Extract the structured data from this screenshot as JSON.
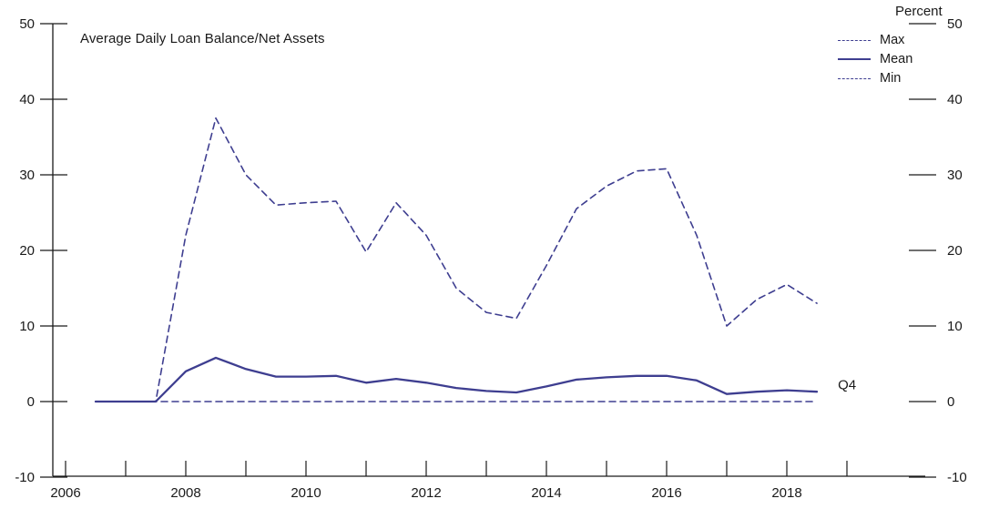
{
  "header": {
    "title": "Average Daily Loan Balance/Net Assets",
    "percent_label": "Percent"
  },
  "legend": [
    {
      "label": "Max",
      "style": "dashed"
    },
    {
      "label": "Mean",
      "style": "solid"
    },
    {
      "label": "Min",
      "style": "dashed"
    }
  ],
  "colors": {
    "line": "#3e3e90",
    "axis": "#1a1a1a",
    "text": "#1a1a1a"
  },
  "chart_data": {
    "type": "line",
    "title": "Average Daily Loan Balance/Net Assets",
    "unit_label": "Percent",
    "ylim": [
      -10,
      50
    ],
    "yticks": [
      -10,
      0,
      10,
      20,
      30,
      40,
      50
    ],
    "xlim": [
      2005.8,
      2020.3
    ],
    "xticks_all": [
      2006,
      2007,
      2008,
      2009,
      2010,
      2011,
      2012,
      2013,
      2014,
      2015,
      2016,
      2017,
      2018,
      2019
    ],
    "xticks_labeled": [
      2006,
      2008,
      2010,
      2012,
      2014,
      2016,
      2018
    ],
    "grid": false,
    "legend_position": "top-right",
    "x": [
      2006.5,
      2007.0,
      2007.5,
      2008.0,
      2008.5,
      2009.0,
      2009.5,
      2010.0,
      2010.5,
      2011.0,
      2011.5,
      2012.0,
      2012.5,
      2013.0,
      2013.5,
      2014.0,
      2014.5,
      2015.0,
      2015.5,
      2016.0,
      2016.5,
      2017.0,
      2017.5,
      2018.0,
      2018.5
    ],
    "series": [
      {
        "name": "Max",
        "style": "dashed",
        "values": [
          0,
          0,
          0,
          22,
          37.5,
          30,
          26,
          26.3,
          26.5,
          19.8,
          26.3,
          22,
          15,
          11.8,
          11,
          18,
          25.5,
          28.5,
          30.5,
          30.8,
          22,
          10,
          13.5,
          15.5,
          13
        ]
      },
      {
        "name": "Mean",
        "style": "solid",
        "values": [
          0,
          0,
          0,
          4,
          5.8,
          4.3,
          3.3,
          3.3,
          3.4,
          2.5,
          3.0,
          2.5,
          1.8,
          1.4,
          1.2,
          2.0,
          2.9,
          3.2,
          3.4,
          3.4,
          2.8,
          1.0,
          1.3,
          1.5,
          1.3
        ]
      },
      {
        "name": "Min",
        "style": "dashed",
        "values": [
          0,
          0,
          0,
          0,
          0,
          0,
          0,
          0,
          0,
          0,
          0,
          0,
          0,
          0,
          0,
          0,
          0,
          0,
          0,
          0,
          0,
          0,
          0,
          0,
          0
        ]
      }
    ],
    "annotations": [
      {
        "text": "Q4",
        "x": 2018.85,
        "y": 2.2
      }
    ]
  }
}
